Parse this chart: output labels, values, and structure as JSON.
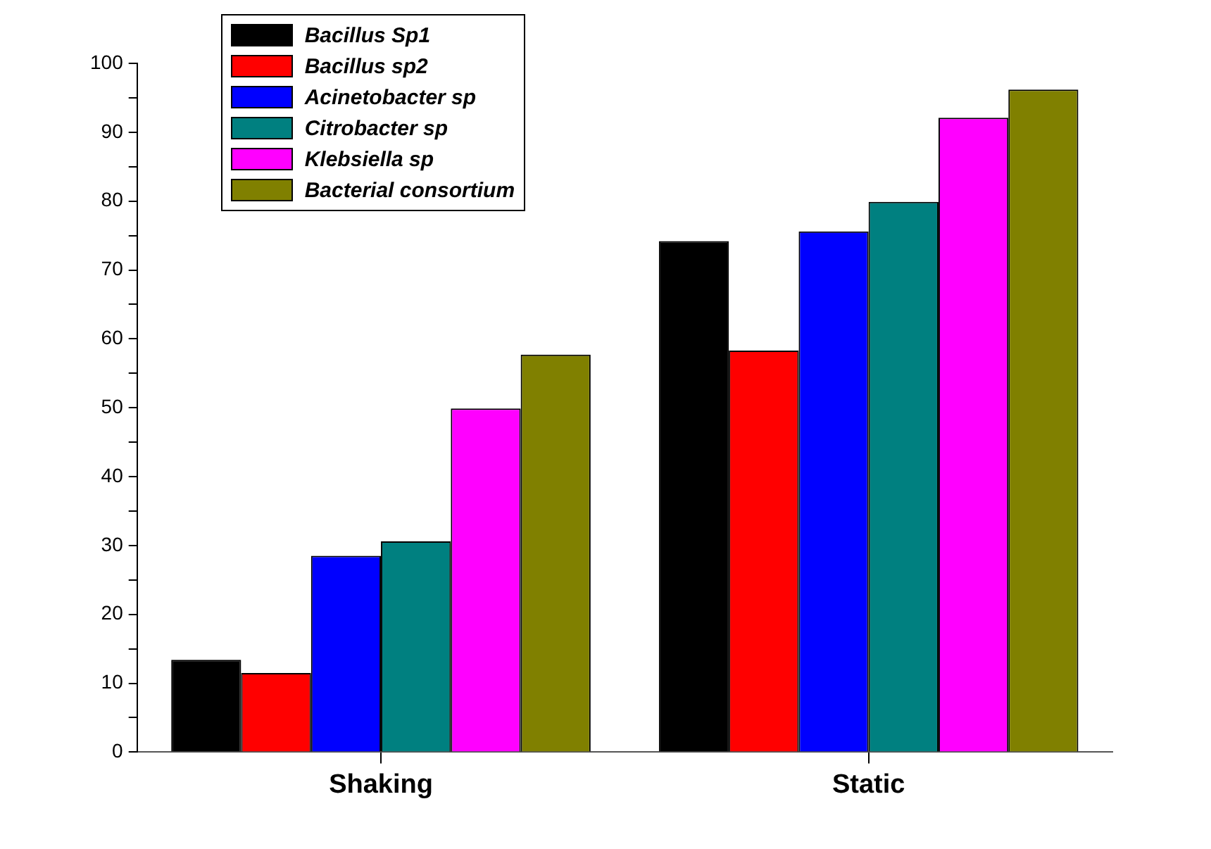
{
  "chart_data": {
    "type": "bar",
    "categories": [
      "Shaking",
      "Static"
    ],
    "series": [
      {
        "name": "Bacillus Sp1",
        "color": "#000000",
        "values": [
          13.4,
          74.2
        ]
      },
      {
        "name": "Bacillus sp2",
        "color": "#ff0000",
        "values": [
          11.5,
          58.3
        ]
      },
      {
        "name": "Acinetobacter sp",
        "color": "#0000ff",
        "values": [
          28.5,
          75.6
        ]
      },
      {
        "name": "Citrobacter sp",
        "color": "#008080",
        "values": [
          30.6,
          79.9
        ]
      },
      {
        "name": "Klebsiella sp",
        "color": "#ff00ff",
        "values": [
          49.9,
          92.1
        ]
      },
      {
        "name": "Bacterial consortium",
        "color": "#808000",
        "values": [
          57.7,
          96.2
        ]
      }
    ],
    "ylim": [
      0,
      100
    ],
    "yticks": [
      0,
      {
        "value": 5,
        "label": null
      },
      10,
      {
        "value": 15,
        "label": null
      },
      20,
      {
        "value": 25,
        "label": null
      },
      30,
      {
        "value": 35,
        "label": null
      },
      40,
      {
        "value": 45,
        "label": null
      },
      50,
      {
        "value": 55,
        "label": null
      },
      60,
      {
        "value": 65,
        "label": null
      },
      70,
      {
        "value": 75,
        "label": null
      },
      80,
      {
        "value": 85,
        "label": null
      },
      90,
      {
        "value": 95,
        "label": null
      },
      100
    ],
    "legend": "top left"
  }
}
